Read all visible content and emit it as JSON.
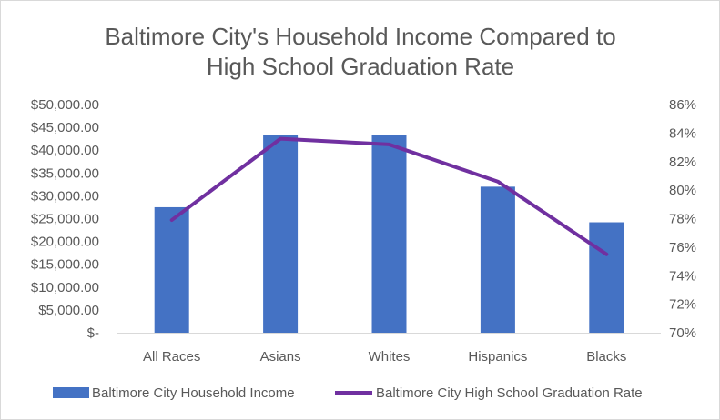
{
  "chart_data": {
    "type": "bar",
    "title_lines": [
      "Baltimore City's Household Income Compared to",
      "High School Graduation Rate"
    ],
    "categories": [
      "All Races",
      "Asians",
      "Whites",
      "Hispanics",
      "Blacks"
    ],
    "series": [
      {
        "name": "Baltimore City Household Income",
        "type": "bar",
        "axis": "left",
        "color": "#4472C4",
        "values": [
          27500,
          43300,
          43300,
          32000,
          24200
        ]
      },
      {
        "name": "Baltimore City High School Graduation Rate",
        "type": "line",
        "axis": "right",
        "color": "#7030A0",
        "values": [
          77.9,
          83.6,
          83.2,
          80.6,
          75.5
        ]
      }
    ],
    "y_left": {
      "min": 0,
      "max": 50000,
      "ticks": [
        0,
        5000,
        10000,
        15000,
        20000,
        25000,
        30000,
        35000,
        40000,
        45000,
        50000
      ],
      "tick_labels": [
        "$-",
        "$5,000.00",
        "$10,000.00",
        "$15,000.00",
        "$20,000.00",
        "$25,000.00",
        "$30,000.00",
        "$35,000.00",
        "$40,000.00",
        "$45,000.00",
        "$50,000.00"
      ]
    },
    "y_right": {
      "min": 70,
      "max": 86,
      "ticks": [
        70,
        72,
        74,
        76,
        78,
        80,
        82,
        84,
        86
      ],
      "tick_labels": [
        "70%",
        "72%",
        "74%",
        "76%",
        "78%",
        "80%",
        "82%",
        "84%",
        "86%"
      ]
    },
    "grid": false,
    "legend_position": "bottom"
  }
}
